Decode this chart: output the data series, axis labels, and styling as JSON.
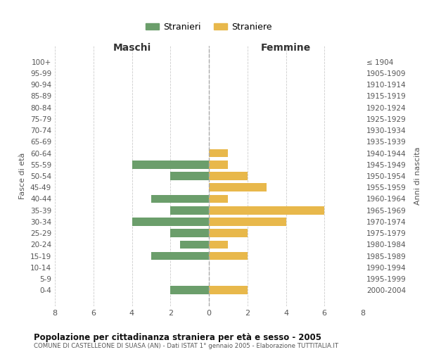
{
  "age_groups": [
    "100+",
    "95-99",
    "90-94",
    "85-89",
    "80-84",
    "75-79",
    "70-74",
    "65-69",
    "60-64",
    "55-59",
    "50-54",
    "45-49",
    "40-44",
    "35-39",
    "30-34",
    "25-29",
    "20-24",
    "15-19",
    "10-14",
    "5-9",
    "0-4"
  ],
  "birth_years": [
    "≤ 1904",
    "1905-1909",
    "1910-1914",
    "1915-1919",
    "1920-1924",
    "1925-1929",
    "1930-1934",
    "1935-1939",
    "1940-1944",
    "1945-1949",
    "1950-1954",
    "1955-1959",
    "1960-1964",
    "1965-1969",
    "1970-1974",
    "1975-1979",
    "1980-1984",
    "1985-1989",
    "1990-1994",
    "1995-1999",
    "2000-2004"
  ],
  "maschi": [
    0,
    0,
    0,
    0,
    0,
    0,
    0,
    0,
    0,
    4,
    2,
    0,
    3,
    2,
    4,
    2,
    1.5,
    3,
    0,
    0,
    2
  ],
  "femmine": [
    0,
    0,
    0,
    0,
    0,
    0,
    0,
    0,
    1,
    1,
    2,
    3,
    1,
    6,
    4,
    2,
    1,
    2,
    0,
    0,
    2
  ],
  "maschi_color": "#6b9e6b",
  "femmine_color": "#e8b84b",
  "title": "Popolazione per cittadinanza straniera per età e sesso - 2005",
  "subtitle": "COMUNE DI CASTELLEONE DI SUASA (AN) - Dati ISTAT 1° gennaio 2005 - Elaborazione TUTTITALIA.IT",
  "legend_maschi": "Stranieri",
  "legend_femmine": "Straniere",
  "xlabel_left": "Maschi",
  "xlabel_right": "Femmine",
  "ylabel_left": "Fasce di età",
  "ylabel_right": "Anni di nascita",
  "xlim": 8,
  "background_color": "#ffffff",
  "grid_color": "#cccccc"
}
